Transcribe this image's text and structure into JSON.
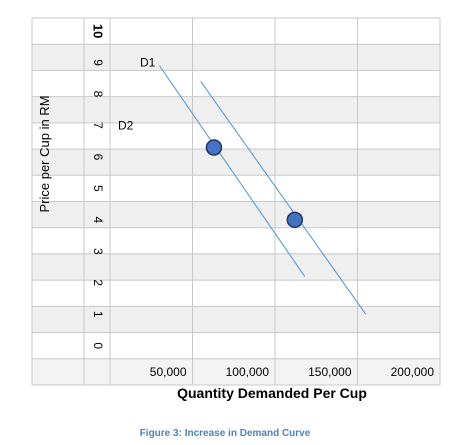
{
  "chart_data": {
    "type": "line",
    "title": "",
    "xlabel": "Quantity Demanded Per Cup",
    "ylabel": "Price per Cup in RM",
    "caption": "Figure 3: Increase in Demand Curve",
    "xlim": [
      0,
      200000
    ],
    "ylim": [
      0,
      10
    ],
    "x_ticks": [
      "50,000",
      "100,000",
      "150,000",
      "200,000"
    ],
    "y_ticks": [
      "0",
      "1",
      "2",
      "3",
      "4",
      "5",
      "6",
      "7",
      "8",
      "9",
      "10"
    ],
    "grid": true,
    "series": [
      {
        "name": "D1",
        "color": "#5b9bd5",
        "x": [
          30000,
          118000
        ],
        "y": [
          8.9,
          2.2
        ]
      },
      {
        "name": "D2",
        "color": "#5b9bd5",
        "x": [
          55000,
          155000
        ],
        "y": [
          8.4,
          1.0
        ]
      }
    ],
    "points": [
      {
        "x": 63000,
        "y": 6.3,
        "color": "#4472c4"
      },
      {
        "x": 112000,
        "y": 4.0,
        "color": "#4472c4"
      }
    ]
  }
}
